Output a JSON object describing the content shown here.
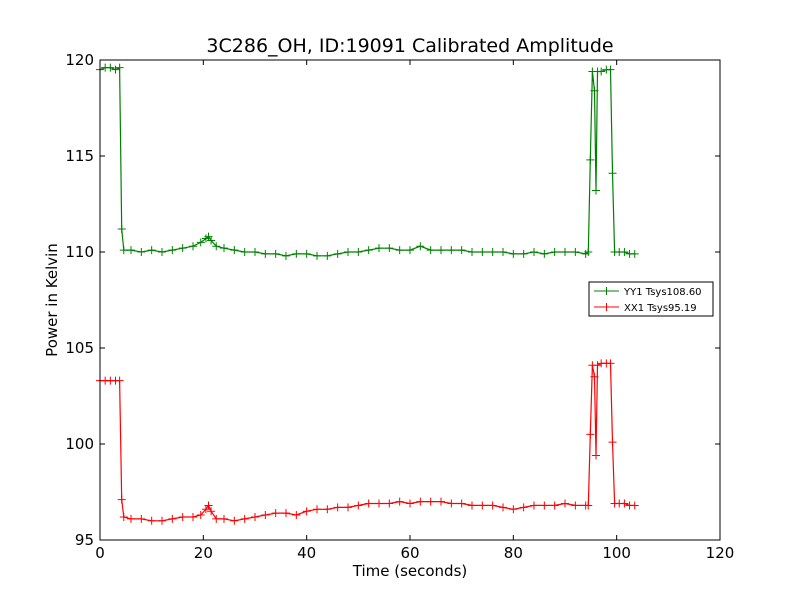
{
  "chart_data": {
    "type": "line",
    "title": "3C286_OH, ID:19091 Calibrated Amplitude",
    "xlabel": "Time (seconds)",
    "ylabel": "Power in Kelvin",
    "xlim": [
      0,
      120
    ],
    "ylim": [
      95,
      120
    ],
    "xticks": [
      "0",
      "20",
      "40",
      "60",
      "80",
      "100",
      "120"
    ],
    "yticks": [
      "95",
      "100",
      "105",
      "110",
      "115",
      "120"
    ],
    "grid": false,
    "legend_position": "right",
    "series": [
      {
        "name": "YY1 Tsys108.60",
        "color": "#008000",
        "marker": "+",
        "points": [
          [
            0,
            119.5
          ],
          [
            1,
            119.6
          ],
          [
            2,
            119.6
          ],
          [
            3,
            119.5
          ],
          [
            3.8,
            119.6
          ],
          [
            4.2,
            111.2
          ],
          [
            4.6,
            110.1
          ],
          [
            6,
            110.1
          ],
          [
            8,
            110.0
          ],
          [
            10,
            110.1
          ],
          [
            12,
            110.0
          ],
          [
            14,
            110.1
          ],
          [
            16,
            110.2
          ],
          [
            18,
            110.3
          ],
          [
            19.5,
            110.5
          ],
          [
            20.5,
            110.7
          ],
          [
            21,
            110.8
          ],
          [
            21.5,
            110.6
          ],
          [
            22.5,
            110.3
          ],
          [
            24,
            110.2
          ],
          [
            26,
            110.1
          ],
          [
            28,
            110.0
          ],
          [
            30,
            110.0
          ],
          [
            32,
            109.9
          ],
          [
            34,
            109.9
          ],
          [
            36,
            109.8
          ],
          [
            38,
            109.9
          ],
          [
            40,
            109.9
          ],
          [
            42,
            109.8
          ],
          [
            44,
            109.8
          ],
          [
            46,
            109.9
          ],
          [
            48,
            110.0
          ],
          [
            50,
            110.0
          ],
          [
            52,
            110.1
          ],
          [
            54,
            110.2
          ],
          [
            56,
            110.2
          ],
          [
            58,
            110.1
          ],
          [
            60,
            110.1
          ],
          [
            62,
            110.3
          ],
          [
            64,
            110.1
          ],
          [
            66,
            110.1
          ],
          [
            68,
            110.1
          ],
          [
            70,
            110.1
          ],
          [
            72,
            110.0
          ],
          [
            74,
            110.0
          ],
          [
            76,
            110.0
          ],
          [
            78,
            110.0
          ],
          [
            80,
            109.9
          ],
          [
            82,
            109.9
          ],
          [
            84,
            110.0
          ],
          [
            86,
            109.9
          ],
          [
            88,
            110.0
          ],
          [
            90,
            110.0
          ],
          [
            92,
            110.0
          ],
          [
            94,
            109.9
          ],
          [
            94.5,
            110.0
          ],
          [
            94.9,
            114.8
          ],
          [
            95.3,
            119.4
          ],
          [
            95.7,
            118.4
          ],
          [
            96.0,
            113.2
          ],
          [
            96.3,
            119.4
          ],
          [
            97,
            119.4
          ],
          [
            98,
            119.5
          ],
          [
            98.8,
            119.5
          ],
          [
            99.2,
            114.1
          ],
          [
            99.6,
            110.0
          ],
          [
            100.5,
            110.0
          ],
          [
            101.5,
            110.0
          ],
          [
            102.5,
            109.9
          ],
          [
            103.5,
            109.9
          ]
        ]
      },
      {
        "name": "XX1 Tsys95.19",
        "color": "#ff0000",
        "marker": "+",
        "points": [
          [
            0,
            103.3
          ],
          [
            1,
            103.3
          ],
          [
            2,
            103.3
          ],
          [
            3,
            103.3
          ],
          [
            3.8,
            103.3
          ],
          [
            4.2,
            97.1
          ],
          [
            4.6,
            96.2
          ],
          [
            6,
            96.1
          ],
          [
            8,
            96.1
          ],
          [
            10,
            96.0
          ],
          [
            12,
            96.0
          ],
          [
            14,
            96.1
          ],
          [
            16,
            96.2
          ],
          [
            18,
            96.2
          ],
          [
            19.5,
            96.3
          ],
          [
            20.5,
            96.6
          ],
          [
            21,
            96.8
          ],
          [
            21.5,
            96.5
          ],
          [
            22.5,
            96.1
          ],
          [
            24,
            96.1
          ],
          [
            26,
            96.0
          ],
          [
            28,
            96.1
          ],
          [
            30,
            96.2
          ],
          [
            32,
            96.3
          ],
          [
            34,
            96.4
          ],
          [
            36,
            96.4
          ],
          [
            38,
            96.3
          ],
          [
            40,
            96.5
          ],
          [
            42,
            96.6
          ],
          [
            44,
            96.6
          ],
          [
            46,
            96.7
          ],
          [
            48,
            96.7
          ],
          [
            50,
            96.8
          ],
          [
            52,
            96.9
          ],
          [
            54,
            96.9
          ],
          [
            56,
            96.9
          ],
          [
            58,
            97.0
          ],
          [
            60,
            96.9
          ],
          [
            62,
            97.0
          ],
          [
            64,
            97.0
          ],
          [
            66,
            97.0
          ],
          [
            68,
            96.9
          ],
          [
            70,
            96.9
          ],
          [
            72,
            96.8
          ],
          [
            74,
            96.8
          ],
          [
            76,
            96.8
          ],
          [
            78,
            96.7
          ],
          [
            80,
            96.6
          ],
          [
            82,
            96.7
          ],
          [
            84,
            96.8
          ],
          [
            86,
            96.8
          ],
          [
            88,
            96.8
          ],
          [
            90,
            96.9
          ],
          [
            92,
            96.8
          ],
          [
            94,
            96.8
          ],
          [
            94.5,
            96.8
          ],
          [
            94.9,
            100.5
          ],
          [
            95.3,
            104.1
          ],
          [
            95.7,
            103.5
          ],
          [
            96.0,
            99.4
          ],
          [
            96.3,
            104.1
          ],
          [
            97,
            104.2
          ],
          [
            98,
            104.2
          ],
          [
            98.8,
            104.2
          ],
          [
            99.2,
            100.1
          ],
          [
            99.6,
            96.9
          ],
          [
            100.5,
            96.9
          ],
          [
            101.5,
            96.9
          ],
          [
            102.5,
            96.8
          ],
          [
            103.5,
            96.8
          ]
        ]
      }
    ]
  }
}
